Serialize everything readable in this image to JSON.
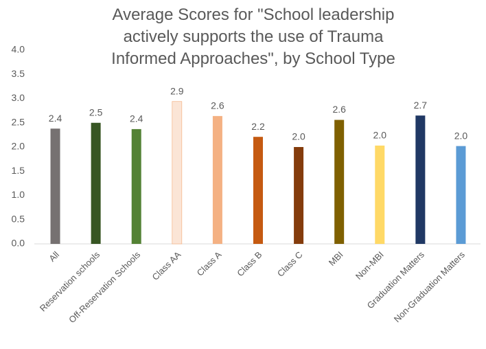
{
  "chart_data": {
    "type": "bar",
    "title": "Average Scores for \"School leadership actively supports the use of Trauma Informed Approaches\", by School Type",
    "categories": [
      "All",
      "Reservation schools",
      "Off-Reservation Schools",
      "Class AA",
      "Class A",
      "Class B",
      "Class C",
      "MBI",
      "Non-MBI",
      "Graduation Matters",
      "Non-Graduation Matters"
    ],
    "values": [
      2.38,
      2.5,
      2.37,
      2.94,
      2.64,
      2.21,
      2.0,
      2.56,
      2.03,
      2.65,
      2.02
    ],
    "value_labels": [
      "2.4",
      "2.5",
      "2.4",
      "2.9",
      "2.6",
      "2.2",
      "2.0",
      "2.6",
      "2.0",
      "2.7",
      "2.0"
    ],
    "colors": [
      "#767171",
      "#375623",
      "#548235",
      "#fbe5d6",
      "#f4b183",
      "#c55a11",
      "#843c0c",
      "#7f6000",
      "#ffd966",
      "#203864",
      "#5b9bd5"
    ],
    "ylim": [
      0,
      4
    ],
    "yticks": [
      {
        "value": 0,
        "label": "0.0"
      },
      {
        "value": 0.5,
        "label": "0.5"
      },
      {
        "value": 1,
        "label": "1.0"
      },
      {
        "value": 1.5,
        "label": "1.5"
      },
      {
        "value": 2,
        "label": "2.0"
      },
      {
        "value": 2.5,
        "label": "2.5"
      },
      {
        "value": 3,
        "label": "3.0"
      },
      {
        "value": 3.5,
        "label": "3.5"
      },
      {
        "value": 4,
        "label": "4.0"
      }
    ],
    "grid": false
  }
}
